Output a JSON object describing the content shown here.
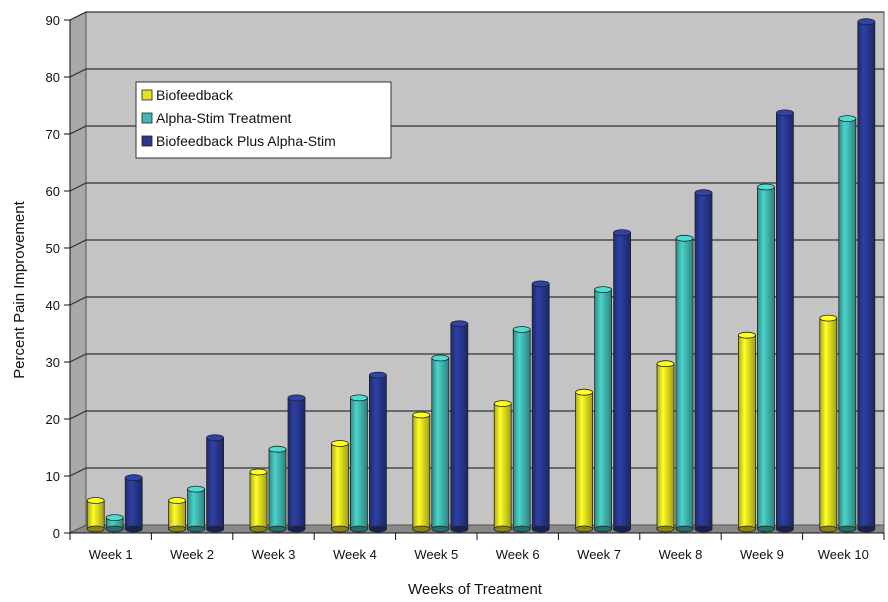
{
  "chart_data": {
    "type": "bar",
    "title": "",
    "xlabel": "Weeks of Treatment",
    "ylabel": "Percent Pain Improvement",
    "ylim": [
      0,
      90
    ],
    "yticks": [
      0,
      10,
      20,
      30,
      40,
      50,
      60,
      70,
      80,
      90
    ],
    "categories": [
      "Week 1",
      "Week 2",
      "Week 3",
      "Week 4",
      "Week 5",
      "Week 6",
      "Week 7",
      "Week 8",
      "Week 9",
      "Week 10"
    ],
    "series": [
      {
        "name": "Biofeedback",
        "color": "#e8e020",
        "values": [
          5,
          5,
          10,
          15,
          20,
          22,
          24,
          29,
          34,
          37
        ]
      },
      {
        "name": "Alpha-Stim Treatment",
        "color": "#40b8b0",
        "values": [
          2,
          7,
          14,
          23,
          30,
          35,
          42,
          51,
          60,
          72
        ]
      },
      {
        "name": "Biofeedback Plus Alpha-Stim",
        "color": "#283890",
        "values": [
          9,
          16,
          23,
          27,
          36,
          43,
          52,
          59,
          73,
          89
        ]
      }
    ],
    "grid": true,
    "legend_position": "top-left"
  }
}
